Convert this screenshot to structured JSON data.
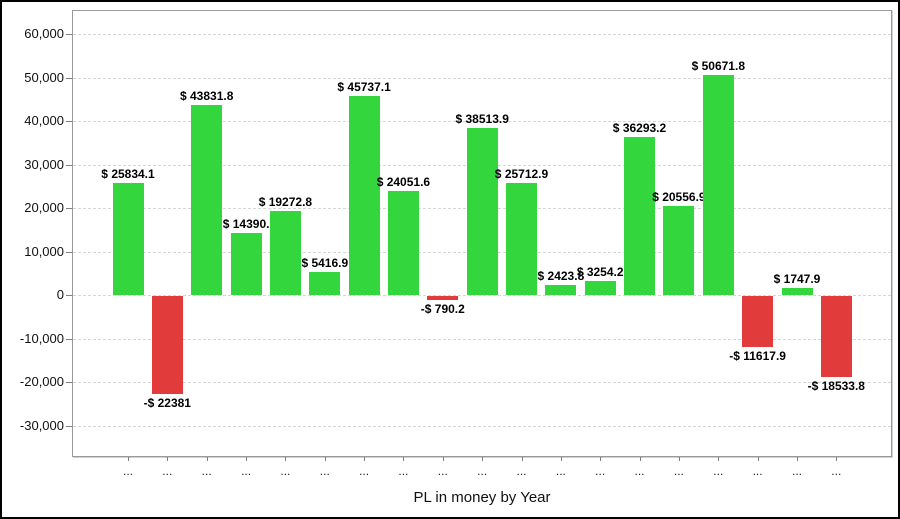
{
  "chart_data": {
    "type": "bar",
    "title": "PL in money by Year",
    "legend": "none",
    "grid": "horizontal-dashed",
    "positive_color": "#33d63c",
    "negative_color": "#e23b3b",
    "ylim": [
      -36900,
      65300
    ],
    "y_ticks": [
      {
        "label": "60,000",
        "value": 60000
      },
      {
        "label": "50,000",
        "value": 50000
      },
      {
        "label": "40,000",
        "value": 40000
      },
      {
        "label": "30,000",
        "value": 30000
      },
      {
        "label": "20,000",
        "value": 20000
      },
      {
        "label": "10,000",
        "value": 10000
      },
      {
        "label": "0",
        "value": 0
      },
      {
        "label": "-10,000",
        "value": -10000
      },
      {
        "label": "-20,000",
        "value": -20000
      },
      {
        "label": "-30,000",
        "value": -30000
      }
    ],
    "categories": [
      "...",
      "...",
      "...",
      "...",
      "...",
      "...",
      "...",
      "...",
      "...",
      "...",
      "...",
      "...",
      "...",
      "...",
      "...",
      "...",
      "...",
      "...",
      "..."
    ],
    "points": [
      {
        "label": "$ 25834.1",
        "value": 25834.1
      },
      {
        "label": "-$ 22381",
        "value": -22381
      },
      {
        "label": "$ 43831.8",
        "value": 43831.8
      },
      {
        "label": "$ 14390.",
        "value": 14390
      },
      {
        "label": "$ 19272.8",
        "value": 19272.8
      },
      {
        "label": "$ 5416.9",
        "value": 5416.9
      },
      {
        "label": "$ 45737.1",
        "value": 45737.1
      },
      {
        "label": "$ 24051.6",
        "value": 24051.6
      },
      {
        "label": "-$ 790.2",
        "value": -790.2
      },
      {
        "label": "$ 38513.9",
        "value": 38513.9
      },
      {
        "label": "$ 25712.9",
        "value": 25712.9
      },
      {
        "label": "$ 2423.8",
        "value": 2423.8
      },
      {
        "label": "$ 3254.2",
        "value": 3254.2
      },
      {
        "label": "$ 36293.2",
        "value": 36293.2
      },
      {
        "label": "$ 20556.9",
        "value": 20556.9
      },
      {
        "label": "$ 50671.8",
        "value": 50671.8
      },
      {
        "label": "-$ 11617.9",
        "value": -11617.9
      },
      {
        "label": "$ 1747.9",
        "value": 1747.9
      },
      {
        "label": "-$ 18533.8",
        "value": -18533.8
      }
    ]
  }
}
